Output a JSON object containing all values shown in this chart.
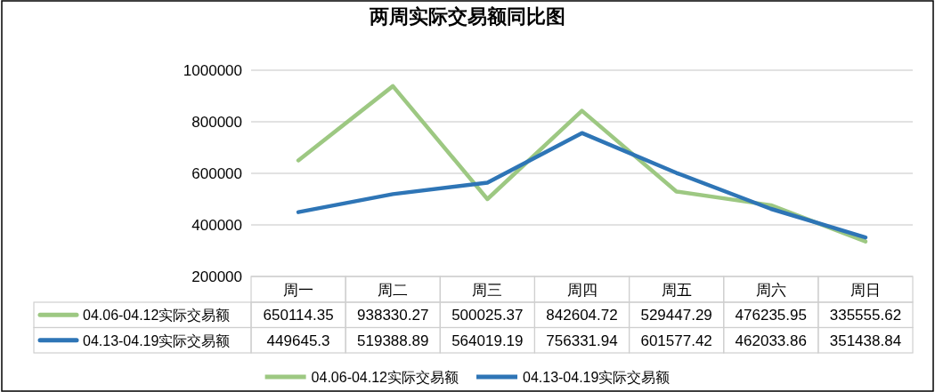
{
  "chart_data": {
    "type": "line",
    "title": "两周实际交易额同比图",
    "categories": [
      "周一",
      "周二",
      "周三",
      "周四",
      "周五",
      "周六",
      "周日"
    ],
    "series": [
      {
        "name": "04.06-04.12实际交易额",
        "color": "#9dc882",
        "values": [
          650114.35,
          938330.27,
          500025.37,
          842604.72,
          529447.29,
          476235.95,
          335555.62
        ]
      },
      {
        "name": "04.13-04.19实际交易额",
        "color": "#2e75b6",
        "values": [
          449645.3,
          519388.89,
          564019.19,
          756331.94,
          601577.42,
          462033.86,
          351438.84
        ]
      }
    ],
    "ylim": [
      200000,
      1000000
    ],
    "yticks": [
      200000,
      400000,
      600000,
      800000,
      1000000
    ],
    "grid": "y",
    "legend": "bottom",
    "data_labels": true
  }
}
